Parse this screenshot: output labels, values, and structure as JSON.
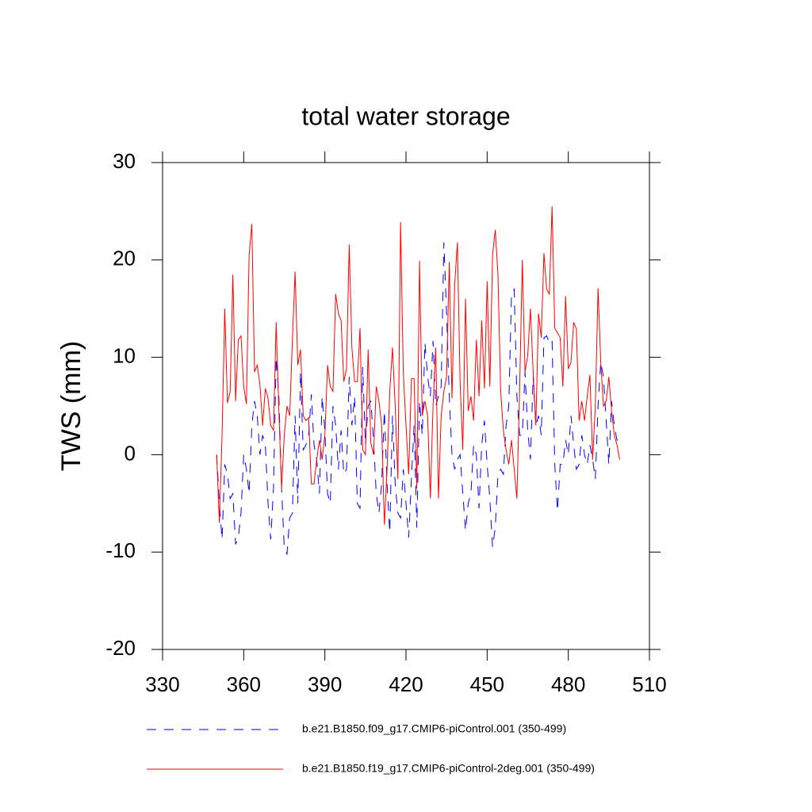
{
  "chart_data": {
    "type": "line",
    "title": "total water storage",
    "y_label": "TWS  (mm)",
    "x": [
      350,
      351,
      352,
      353,
      354,
      355,
      356,
      357,
      358,
      359,
      360,
      361,
      362,
      363,
      364,
      365,
      366,
      367,
      368,
      369,
      370,
      371,
      372,
      373,
      374,
      375,
      376,
      377,
      378,
      379,
      380,
      381,
      382,
      383,
      384,
      385,
      386,
      387,
      388,
      389,
      390,
      391,
      392,
      393,
      394,
      395,
      396,
      397,
      398,
      399,
      400,
      401,
      402,
      403,
      404,
      405,
      406,
      407,
      408,
      409,
      410,
      411,
      412,
      413,
      414,
      415,
      416,
      417,
      418,
      419,
      420,
      421,
      422,
      423,
      424,
      425,
      426,
      427,
      428,
      429,
      430,
      431,
      432,
      433,
      434,
      435,
      436,
      437,
      438,
      439,
      440,
      441,
      442,
      443,
      444,
      445,
      446,
      447,
      448,
      449,
      450,
      451,
      452,
      453,
      454,
      455,
      456,
      457,
      458,
      459,
      460,
      461,
      462,
      463,
      464,
      465,
      466,
      467,
      468,
      469,
      470,
      471,
      472,
      473,
      474,
      475,
      476,
      477,
      478,
      479,
      480,
      481,
      482,
      483,
      484,
      485,
      486,
      487,
      488,
      489,
      490,
      491,
      492,
      493,
      494,
      495,
      496,
      497,
      498,
      499
    ],
    "series": [
      {
        "name": "b.e21.B1850.f09_g17.CMIP6-piControl.001 (350-499)",
        "color": "#0000ff",
        "line_style": "dashed",
        "values": [
          0,
          -5,
          -8.7,
          -1,
          -2,
          -4.5,
          -4,
          -9.2,
          -8.5,
          -6,
          0,
          -1.5,
          -4,
          3,
          5.5,
          4,
          0,
          2,
          1,
          -5,
          -8.7,
          -3.5,
          10,
          6,
          -3.5,
          -9.6,
          -10.2,
          -6.5,
          -6,
          4,
          -5,
          8.5,
          0.5,
          1,
          2,
          6.2,
          1,
          -0.5,
          -4,
          6,
          2.5,
          -4,
          -5,
          5,
          3,
          -1.5,
          2.5,
          -2,
          -1.5,
          8,
          3,
          6,
          -5,
          -5.5,
          9,
          1,
          5,
          5.5,
          1.5,
          -4,
          -6,
          -3,
          4.5,
          -3,
          -8,
          4,
          -3,
          -6,
          -6.5,
          -1.5,
          -5,
          -8.5,
          -2.5,
          3,
          -7.5,
          5.5,
          2,
          11.5,
          8,
          6,
          11.7,
          5,
          6,
          7,
          21.8,
          14.5,
          6,
          0,
          -1.5,
          -0.5,
          0,
          -4,
          -7.8,
          -5,
          -4,
          1,
          0,
          -5.5,
          1,
          3.5,
          -1,
          -4.5,
          -9.5,
          -7.5,
          -2,
          -1.5,
          -2,
          3,
          5,
          16.5,
          17,
          6,
          2,
          2,
          8.5,
          2.5,
          -0.5,
          8,
          3,
          4,
          2,
          12,
          12.2,
          11.5,
          11.8,
          -1,
          -5.8,
          -1,
          -1,
          1.5,
          0,
          4,
          1,
          -1.5,
          -1,
          2,
          0,
          -1,
          1,
          -0.5,
          -2.5,
          5,
          9.5,
          8,
          3.5,
          -1,
          5.5,
          3,
          1.5,
          1.5
        ]
      },
      {
        "name": "b.e21.B1850.f19_g17.CMIP6-piControl-2deg.001 (350-499)",
        "color": "#ff0000",
        "line_style": "solid",
        "values": [
          0,
          -7,
          2,
          15,
          5.3,
          6.5,
          18.5,
          5.5,
          11.8,
          12.2,
          7,
          5.2,
          20.5,
          23.7,
          8.5,
          9.2,
          7.2,
          3,
          6.8,
          5.8,
          3,
          2.5,
          13.6,
          4.5,
          -3.5,
          2,
          5,
          4,
          11.8,
          18.8,
          9.2,
          10.8,
          4,
          3.5,
          3.8,
          -3,
          -3,
          -0.5,
          1.5,
          -0.5,
          2,
          9.2,
          7,
          6.5,
          16.5,
          14.5,
          13.8,
          7.5,
          8.8,
          21.6,
          11,
          7.5,
          7.5,
          13,
          0.5,
          0,
          10.8,
          1.2,
          0,
          7,
          5.5,
          3,
          -7.2,
          -1.5,
          6.5,
          11,
          5,
          -2.5,
          23.9,
          8.5,
          3,
          -2,
          7.8,
          7.8,
          -3.5,
          19.9,
          4,
          5.5,
          4,
          -4.5,
          5,
          11,
          -4.5,
          4,
          6.5,
          8,
          19.8,
          5.8,
          17.5,
          21.8,
          7.5,
          0.5,
          16,
          4.5,
          6,
          3.5,
          11.8,
          6,
          13.8,
          6.8,
          17.8,
          7,
          20.5,
          23.1,
          18.5,
          6.5,
          2.5,
          0.5,
          -1,
          1.5,
          -1.5,
          -4.5,
          6.5,
          20,
          8.5,
          10.2,
          15,
          8.6,
          3,
          14.5,
          12,
          20.7,
          17,
          16.5,
          25.5,
          13,
          12.5,
          12,
          7,
          16.3,
          8.8,
          9.5,
          13.6,
          12.9,
          3.5,
          5.5,
          3.5,
          6,
          8.2,
          -0.5,
          5,
          17.1,
          9.5,
          5,
          5.5,
          8,
          4.5,
          2,
          1,
          -0.5
        ]
      }
    ],
    "xlim": [
      330,
      510
    ],
    "xticks": [
      330,
      360,
      390,
      420,
      450,
      480,
      510
    ],
    "ylim": [
      -20,
      30
    ],
    "yticks": [
      -20,
      -10,
      0,
      10,
      20,
      30
    ]
  }
}
